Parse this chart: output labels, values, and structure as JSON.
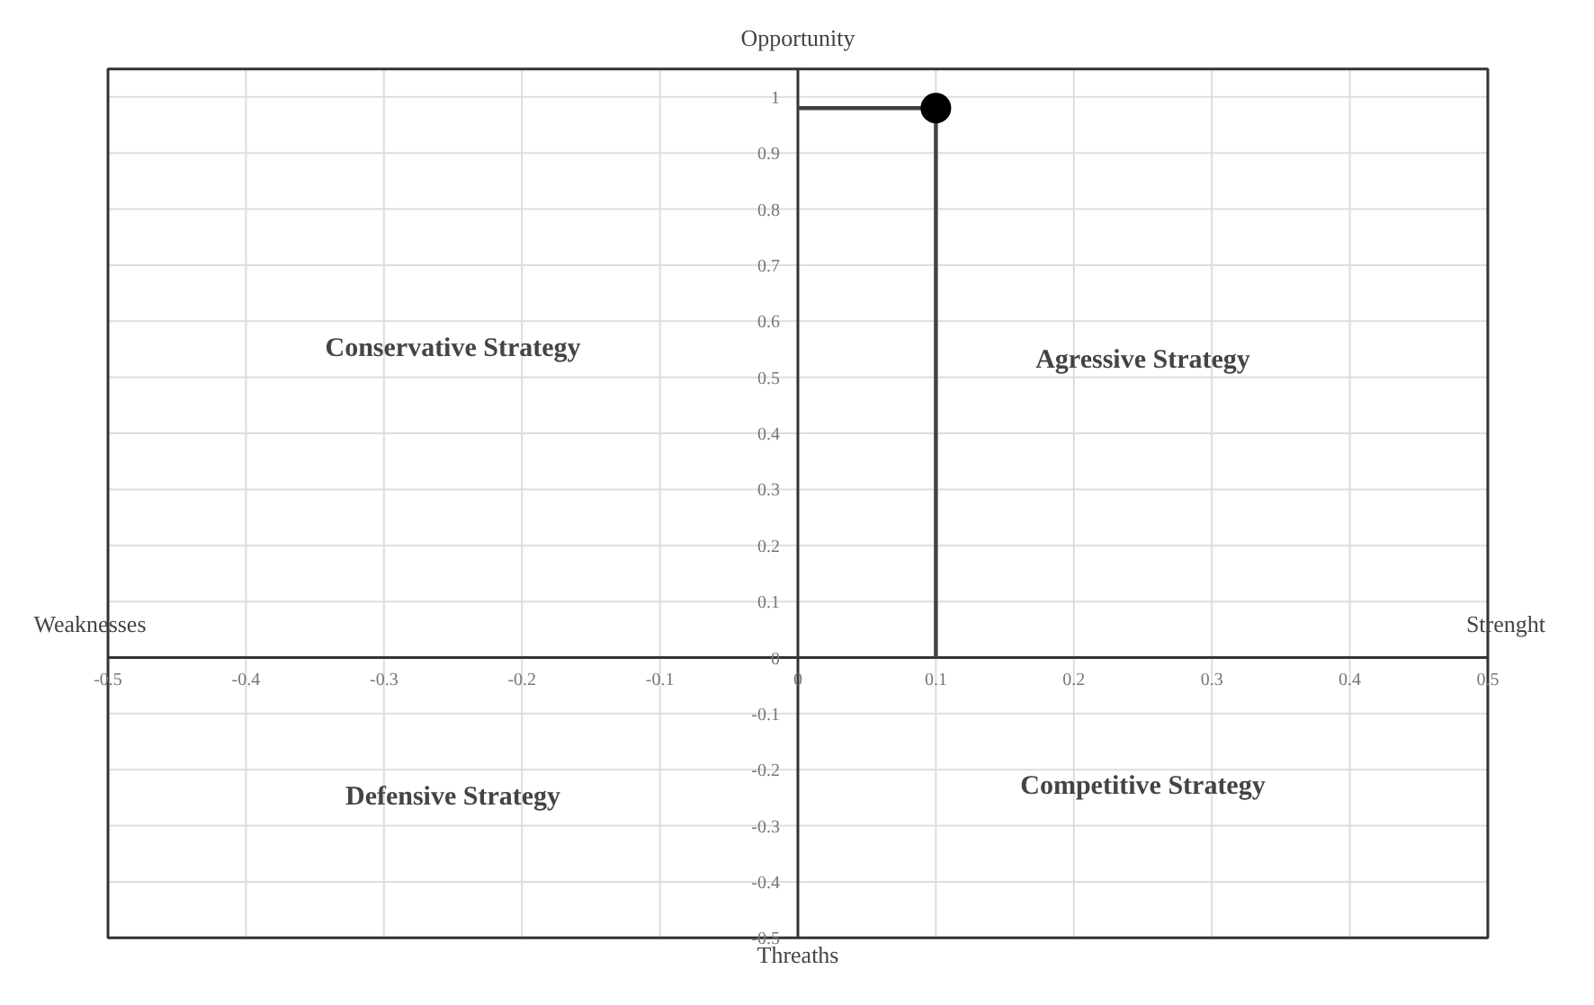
{
  "chart_data": {
    "type": "lollipop",
    "series": [
      {
        "marker": "circle",
        "color": "#000000",
        "x": [
          0.1
        ],
        "values": [
          0.98
        ]
      }
    ],
    "xlim": [
      -0.5,
      0.5
    ],
    "ylim": [
      -0.5,
      1.05
    ],
    "xticks": [
      -0.5,
      -0.4,
      -0.3,
      -0.2,
      -0.1,
      0,
      0.1,
      0.2,
      0.3,
      0.4,
      0.5
    ],
    "yticks": [
      -0.5,
      -0.4,
      -0.3,
      -0.2,
      -0.1,
      0,
      0.1,
      0.2,
      0.3,
      0.4,
      0.5,
      0.6,
      0.7,
      0.8,
      0.9,
      1
    ],
    "grid": true,
    "title": "Opportunity",
    "xlabel": "Threaths",
    "annotations": [
      "Conservative Strategy",
      "Agressive Strategy",
      "Defensive Strategy",
      "Competitive Strategy",
      "Weaknesses",
      "Strenght"
    ]
  }
}
